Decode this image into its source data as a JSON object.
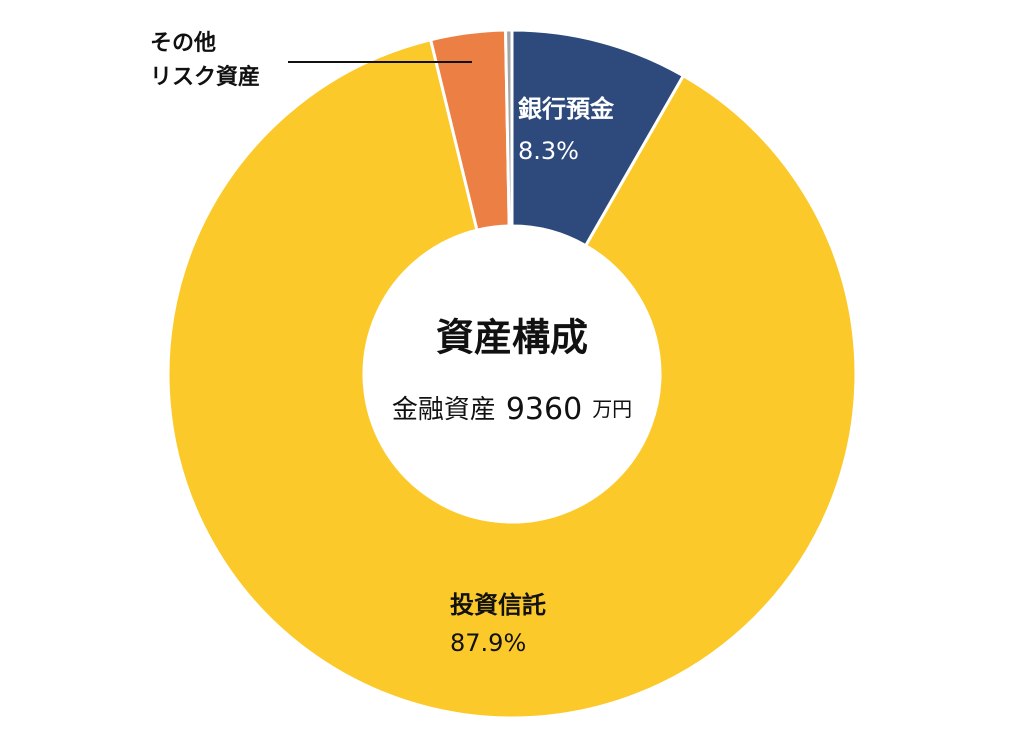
{
  "chart_data": {
    "type": "donut",
    "title": "資産構成",
    "total": {
      "label": "金融資産",
      "value": 9360,
      "unit": "万円"
    },
    "categories": [
      "銀行預金",
      "投資信託",
      "その他\nリスク資産",
      null
    ],
    "values": [
      8.3,
      87.9,
      3.5,
      0.3
    ],
    "value_labels": [
      "8.3%",
      "87.9%",
      null,
      null
    ],
    "colors": [
      "#2e4a7d",
      "#fcc92a",
      "#ec8044",
      "#a5a5a5"
    ]
  }
}
